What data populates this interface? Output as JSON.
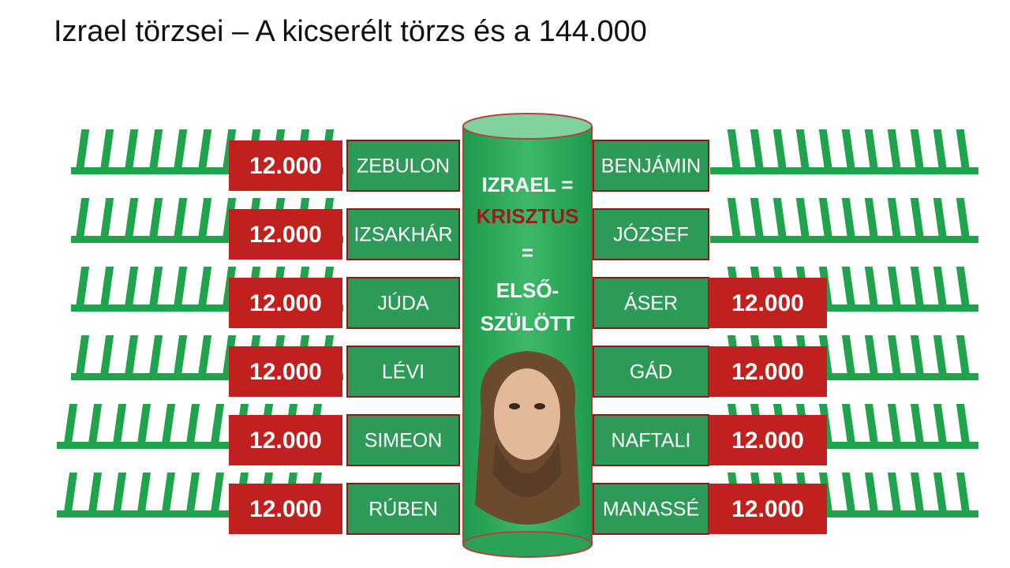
{
  "title": "Izrael törzsei – A kicserélt törzs és a 144.000",
  "left": [
    {
      "count": "12.000",
      "tribe": "ZEBULON"
    },
    {
      "count": "12.000",
      "tribe": "IZSAKHÁR"
    },
    {
      "count": "12.000",
      "tribe": "JÚDA"
    },
    {
      "count": "12.000",
      "tribe": "LÉVI"
    },
    {
      "count": "12.000",
      "tribe": "SIMEON"
    },
    {
      "count": "12.000",
      "tribe": "RÚBEN"
    }
  ],
  "center": {
    "lines": [
      "IZRAEL =",
      "KRISZTUS",
      "=",
      "ELSŐ-",
      "SZÜLÖTT"
    ]
  },
  "right": [
    {
      "tribe": "BENJÁMIN"
    },
    {
      "tribe": "JÓZSEF"
    },
    {
      "tribe": "ÁSER",
      "count": "12.000"
    },
    {
      "tribe": "GÁD",
      "count": "12.000"
    },
    {
      "tribe": "NAFTALI",
      "count": "12.000"
    },
    {
      "tribe": "MANASSÉ",
      "count": "12.000"
    }
  ]
}
